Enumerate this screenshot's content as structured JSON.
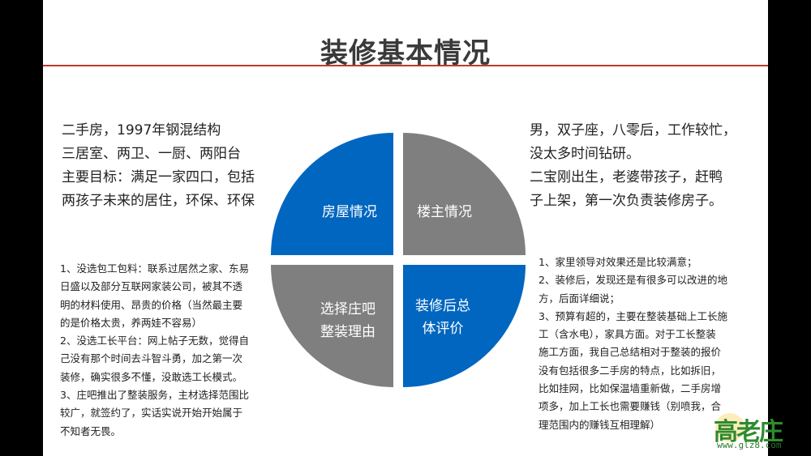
{
  "slide": {
    "title": "装修基本情况"
  },
  "quadrants": [
    {
      "label_lines": [
        "房屋情况"
      ],
      "color": "#0066c0"
    },
    {
      "label_lines": [
        "楼主情况"
      ],
      "color": "#7f7f7f"
    },
    {
      "label_lines": [
        "选择庄吧",
        "整装理由"
      ],
      "color": "#7f7f7f"
    },
    {
      "label_lines": [
        "装修后总",
        "体评价"
      ],
      "color": "#0066c0"
    }
  ],
  "left_top": {
    "lines": [
      "二手房，1997年钢混结构",
      "三居室、两卫、一厨、两阳台",
      "主要目标：满足一家四口，包括",
      "两孩子未来的居住，环保、环保"
    ]
  },
  "right_top": {
    "lines": [
      "男，双子座，八零后，工作较忙，",
      "没太多时间钻研。",
      "二宝刚出生，老婆带孩子，赶鸭",
      "子上架，第一次负责装修房子。"
    ]
  },
  "left_bottom": {
    "lines": [
      "1、没选包工包料：联系过居然之家、东易",
      "日盛以及部分互联网家装公司，被其不透",
      "明的材料使用、昂贵的价格（当然最主要",
      "的是价格太贵，养两娃不容易）",
      "2、没选工长平台：网上帖子无数，觉得自",
      "己没有那个时间去斗智斗勇，加之第一次",
      "装修，确实很多不懂，没敢选工长模式。",
      "3、庄吧推出了整装服务，主材选择范围比",
      "较广，就签约了，实话实说开始开始属于",
      "不知者无畏。"
    ]
  },
  "right_bottom": {
    "lines": [
      "1、家里领导对效果还是比较满意；",
      "2、装修后，发现还是有很多可以改进的地",
      "方，后面详细说；",
      "3、预算有超的，主要在整装基础上工长施",
      "工（含水电），家具方面。对于工长整装",
      "施工方面，我自己总结相对于整装的报价",
      "没有包括很多二手房的特点，比如拆旧，",
      "比如挂网，比如保温墙重新做，二手房增",
      "项多，加上工长也需要赚钱（别喷我，合",
      "理范围内的赚钱互相理解）"
    ]
  },
  "watermark": {
    "chars": "高老庄",
    "url": "www.glz8.com"
  },
  "colors": {
    "blue": "#0066c0",
    "gray": "#7f7f7f",
    "rule": "#c0392b"
  }
}
